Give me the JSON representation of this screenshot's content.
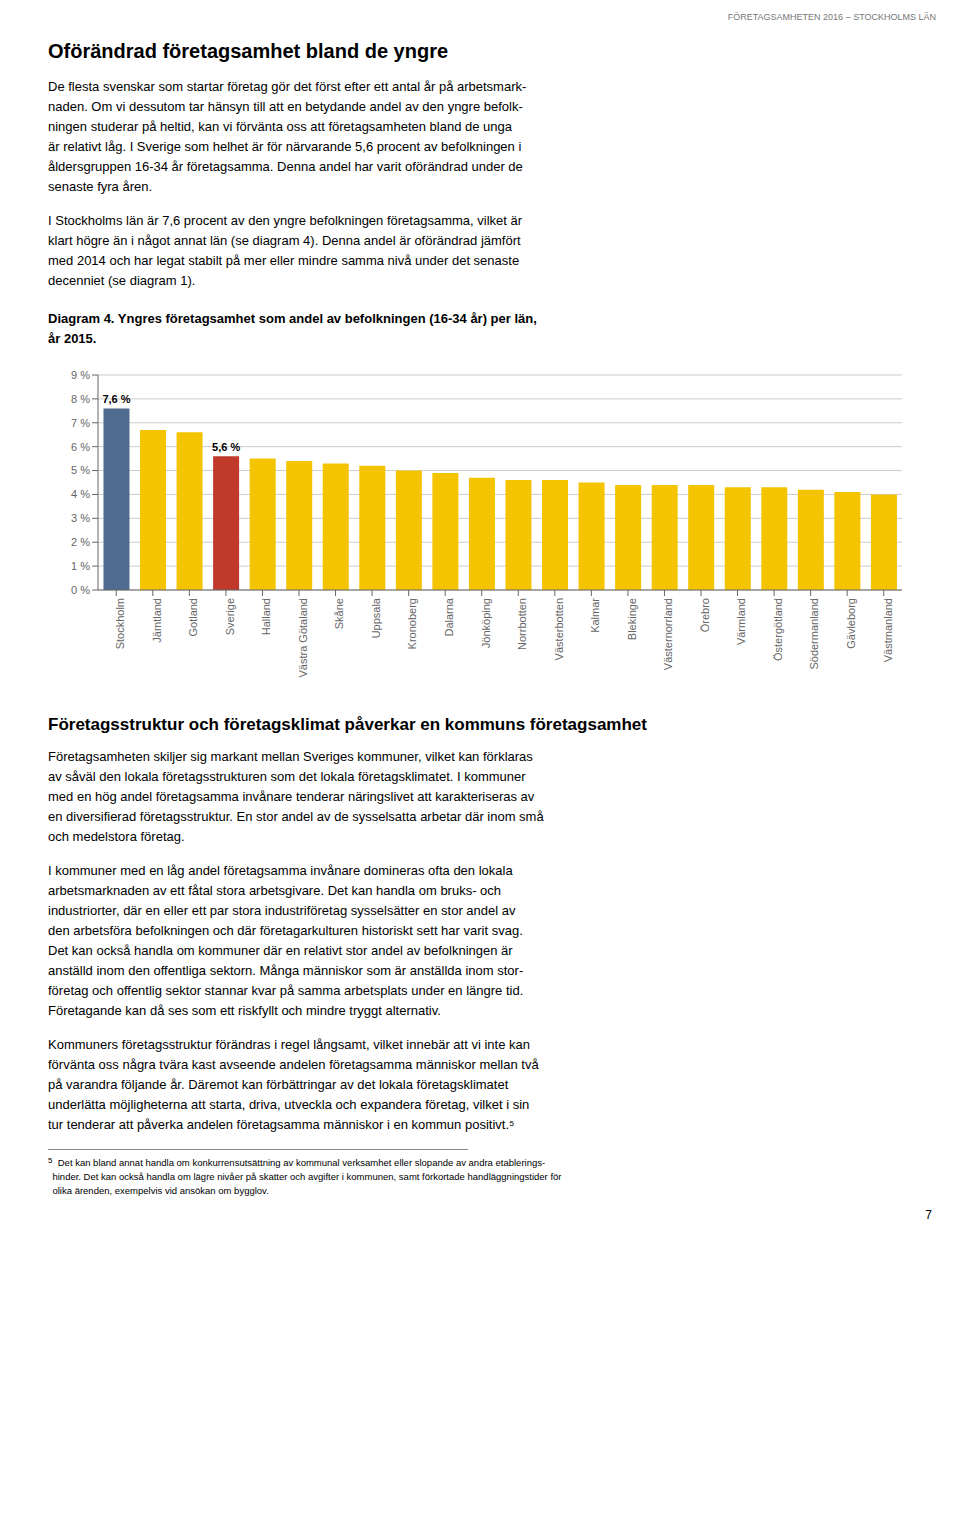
{
  "page_header": "FÖRETAGSAMHETEN 2016 – STOCKHOLMS LÄN",
  "main_title": "Oförändrad företagsamhet bland de yngre",
  "body_before": [
    "De flesta svenskar som startar företag gör det först efter ett antal år på arbetsmark-\nnaden. Om vi dessutom tar hänsyn till att en betydande andel av den yngre befolk-\nningen studerar på heltid, kan vi förvänta oss att företagsamheten bland de unga\när relativt låg. I Sverige som helhet är för närvarande 5,6 procent av befolkningen i\nåldersgruppen 16-34 år företagsamma. Denna andel har varit oförändrad under de\nsenaste fyra åren.",
    "I Stockholms län är 7,6 procent av den yngre befolkningen företagsamma, vilket är\nklart högre än i något annat län (se diagram 4). Denna andel är oförändrad jämfört\nmed 2014 och har legat stabilt på mer eller mindre samma nivå under det senaste\ndecenniet (se diagram 1)."
  ],
  "section_title": "Företagsstruktur och företagsklimat påverkar en kommuns företagsamhet",
  "body_after": [
    "Företagsamheten skiljer sig markant mellan Sveriges kommuner, vilket kan förklaras\nav såväl den lokala företagsstrukturen som det lokala företagsklimatet. I kommuner\nmed en hög andel företagsamma invånare tenderar näringslivet att karakteriseras av\nen diversifierad företagsstruktur. En stor andel av de sysselsatta arbetar där inom små\noch medelstora företag.",
    "I kommuner med en låg andel företagsamma invånare domineras ofta den lokala\narbetsmarknaden av ett fåtal stora arbetsgivare. Det kan handla om bruks- och\nindustriorter, där en eller ett par stora industriföretag sysselsätter en stor andel av\nden arbetsföra befolkningen och där företagarkulturen historiskt sett har varit svag.\nDet kan också handla om kommuner där en relativt stor andel av befolkningen är\nanställd inom den offentliga sektorn. Många människor som är anställda inom stor-\nföretag och offentlig sektor stannar kvar på samma arbetsplats under en längre tid.\nFöretagande kan då ses som ett riskfyllt och mindre tryggt alternativ.",
    "Kommuners företagsstruktur förändras i regel långsamt, vilket innebär att vi inte kan\nförvänta oss några tvära kast avseende andelen företagsamma människor mellan två\npå varandra följande år. Däremot kan förbättringar av det lokala företagsklimatet\nunderlätta möjligheterna att starta, driva, utveckla och expandera företag, vilket i sin\ntur tenderar att påverka andelen företagsamma människor i en kommun positivt.⁵"
  ],
  "footnote_mark": "5",
  "footnote": "  Det kan bland annat handla om konkurrensutsättning av kommunal verksamhet eller slopande av andra etablerings-\nhinder. Det kan också handla om lägre nivåer på skatter och avgifter i kommunen, samt förkortade handläggningstider för\nolika ärenden, exempelvis vid ansökan om bygglov.",
  "page_number": "7",
  "chart_data": {
    "type": "bar",
    "title": "Diagram 4. Yngres företagsamhet som andel av befolkningen (16-34 år) per län,\når 2015.",
    "categories": [
      "Stockholm",
      "Jämtland",
      "Gotland",
      "Sverige",
      "Halland",
      "Västra Götaland",
      "Skåne",
      "Uppsala",
      "Kronoberg",
      "Dalarna",
      "Jönköping",
      "Norrbotten",
      "Västerbotten",
      "Kalmar",
      "Blekinge",
      "Västernorrland",
      "Örebro",
      "Värmland",
      "Östergötland",
      "Södermanland",
      "Gävleborg",
      "Västmanland"
    ],
    "values": [
      7.6,
      6.7,
      6.6,
      5.6,
      5.5,
      5.4,
      5.3,
      5.2,
      5.0,
      4.9,
      4.7,
      4.6,
      4.6,
      4.5,
      4.4,
      4.4,
      4.4,
      4.3,
      4.3,
      4.2,
      4.1,
      4.0
    ],
    "colors": [
      "#4f6b8f",
      "#f5c400",
      "#f5c400",
      "#c0392b",
      "#f5c400",
      "#f5c400",
      "#f5c400",
      "#f5c400",
      "#f5c400",
      "#f5c400",
      "#f5c400",
      "#f5c400",
      "#f5c400",
      "#f5c400",
      "#f5c400",
      "#f5c400",
      "#f5c400",
      "#f5c400",
      "#f5c400",
      "#f5c400",
      "#f5c400",
      "#f5c400"
    ],
    "data_labels": true,
    "value_labels": [
      "7,6 %",
      null,
      null,
      "5,6 %",
      null,
      null,
      null,
      null,
      null,
      null,
      null,
      null,
      null,
      null,
      null,
      null,
      null,
      null,
      null,
      null,
      null,
      null
    ],
    "ylim": [
      0,
      9
    ],
    "yticks": [
      {
        "value": 0,
        "label": "0 %"
      },
      {
        "value": 1,
        "label": "1 %"
      },
      {
        "value": 2,
        "label": "2 %"
      },
      {
        "value": 3,
        "label": "3 %"
      },
      {
        "value": 4,
        "label": "4 %"
      },
      {
        "value": 5,
        "label": "5 %"
      },
      {
        "value": 6,
        "label": "6 %"
      },
      {
        "value": 7,
        "label": "7 %"
      },
      {
        "value": 8,
        "label": "8 %"
      },
      {
        "value": 9,
        "label": "9 %"
      }
    ],
    "grid": true
  }
}
